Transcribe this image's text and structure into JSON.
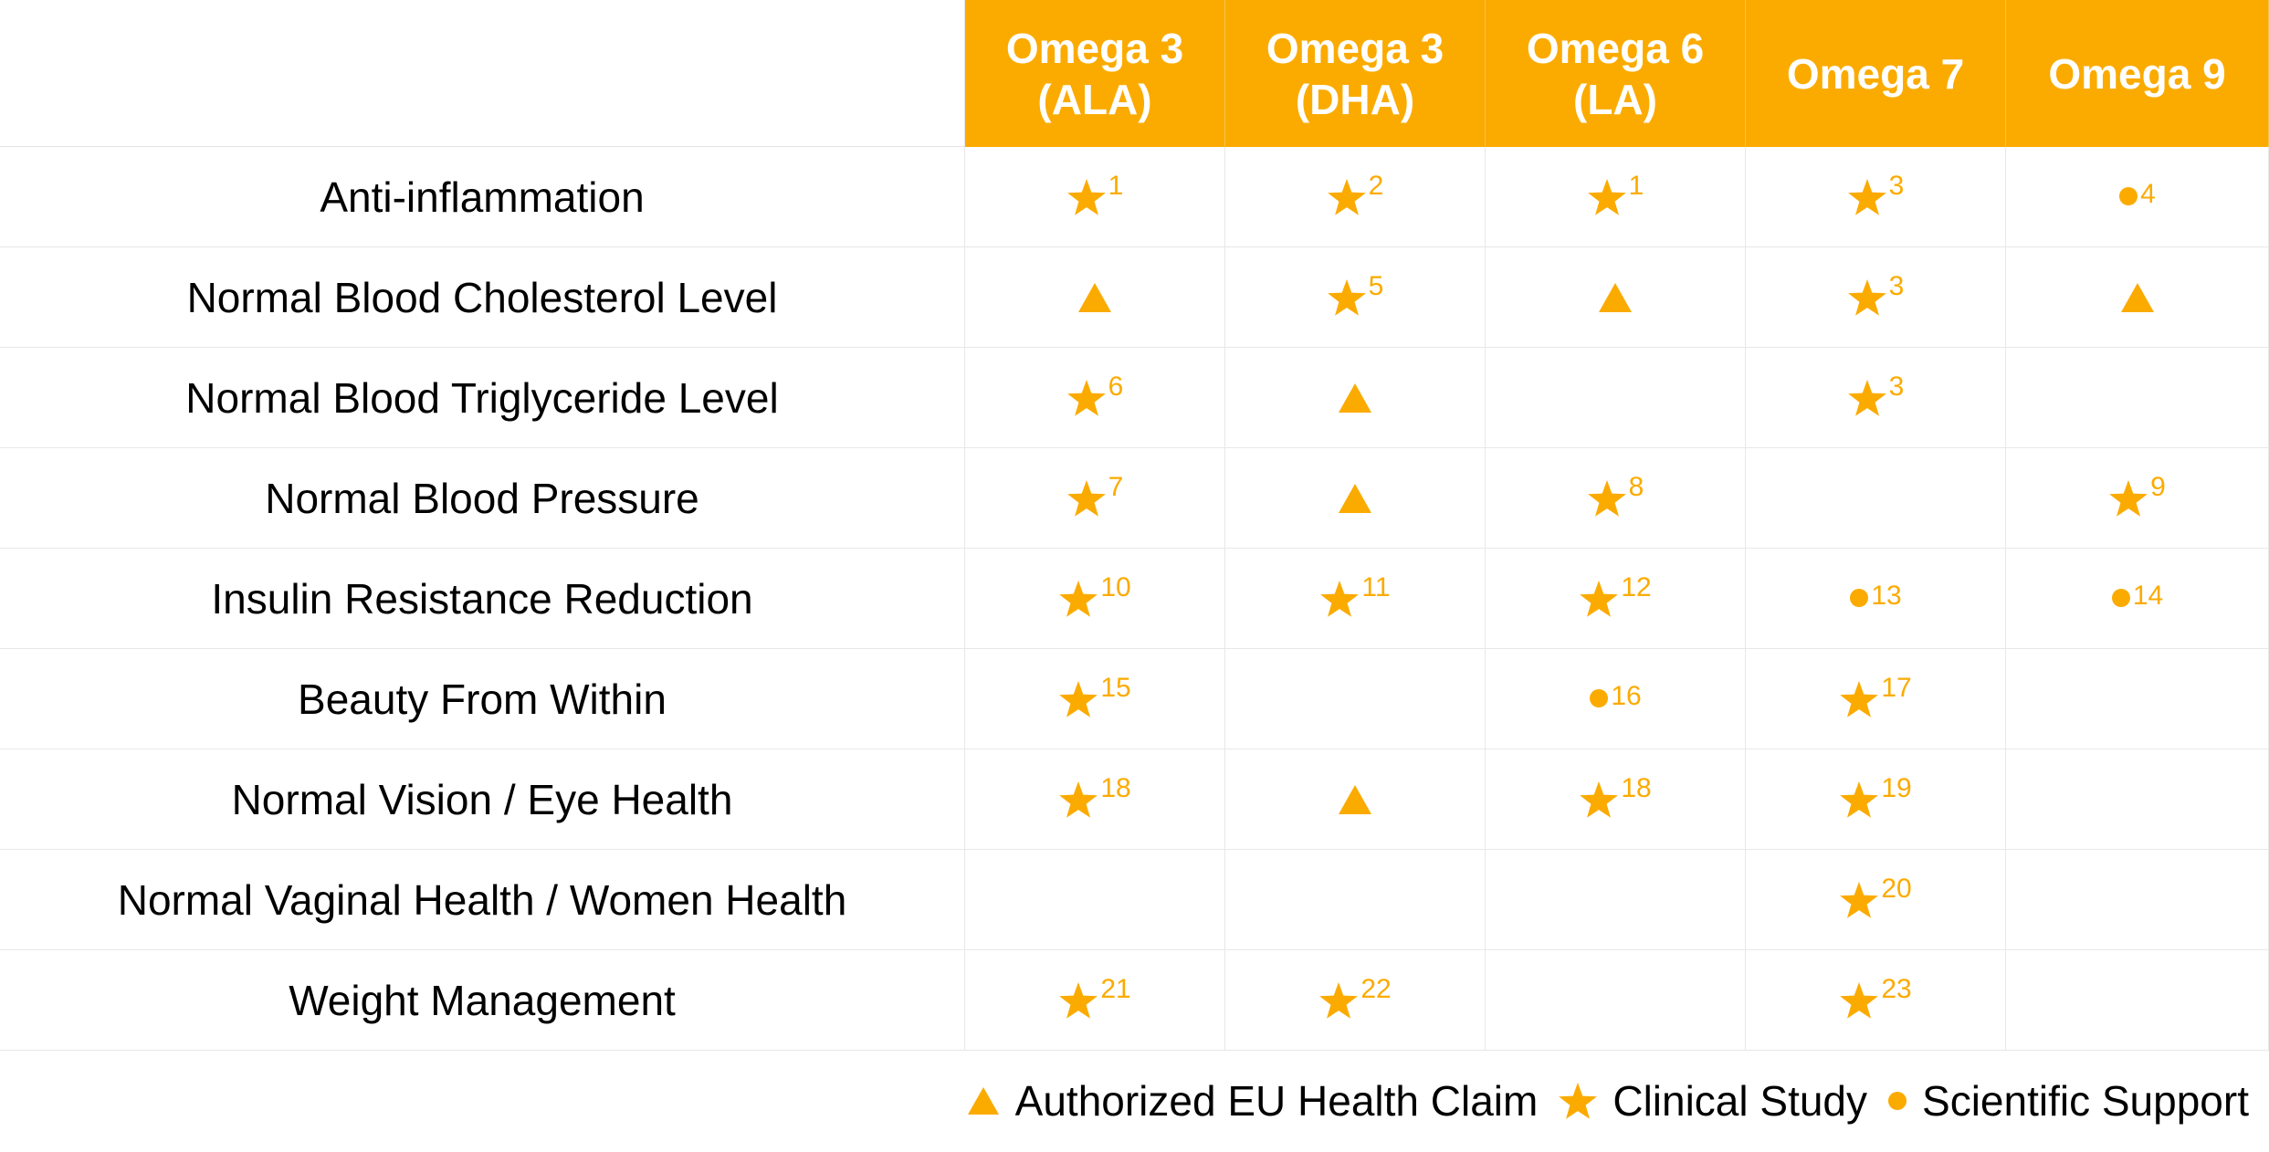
{
  "colors": {
    "accent": "#fbab00",
    "text": "#000000",
    "grid": "#e8e8e8"
  },
  "columns": [
    "Omega 3\n(ALA)",
    "Omega 3\n(DHA)",
    "Omega 6\n(LA)",
    "Omega 7",
    "Omega 9"
  ],
  "rows": [
    {
      "label": "Anti-inflammation",
      "cells": [
        {
          "s": "star",
          "r": "1"
        },
        {
          "s": "star",
          "r": "2"
        },
        {
          "s": "star",
          "r": "1"
        },
        {
          "s": "star",
          "r": "3"
        },
        {
          "s": "dot",
          "r": "4"
        }
      ]
    },
    {
      "label": "Normal Blood Cholesterol Level",
      "cells": [
        {
          "s": "triangle",
          "r": ""
        },
        {
          "s": "star",
          "r": "5"
        },
        {
          "s": "triangle",
          "r": ""
        },
        {
          "s": "star",
          "r": "3"
        },
        {
          "s": "triangle",
          "r": ""
        }
      ]
    },
    {
      "label": "Normal Blood Triglyceride Level",
      "cells": [
        {
          "s": "star",
          "r": "6"
        },
        {
          "s": "triangle",
          "r": ""
        },
        null,
        {
          "s": "star",
          "r": "3"
        },
        null
      ]
    },
    {
      "label": "Normal Blood Pressure",
      "cells": [
        {
          "s": "star",
          "r": "7"
        },
        {
          "s": "triangle",
          "r": ""
        },
        {
          "s": "star",
          "r": "8"
        },
        null,
        {
          "s": "star",
          "r": "9"
        }
      ]
    },
    {
      "label": "Insulin Resistance Reduction",
      "cells": [
        {
          "s": "star",
          "r": "10"
        },
        {
          "s": "star",
          "r": "11"
        },
        {
          "s": "star",
          "r": "12"
        },
        {
          "s": "dot",
          "r": "13"
        },
        {
          "s": "dot",
          "r": "14"
        }
      ]
    },
    {
      "label": "Beauty From Within",
      "cells": [
        {
          "s": "star",
          "r": "15"
        },
        null,
        {
          "s": "dot",
          "r": "16"
        },
        {
          "s": "star",
          "r": "17"
        },
        null
      ]
    },
    {
      "label": "Normal Vision / Eye Health",
      "cells": [
        {
          "s": "star",
          "r": "18"
        },
        {
          "s": "triangle",
          "r": ""
        },
        {
          "s": "star",
          "r": "18"
        },
        {
          "s": "star",
          "r": "19"
        },
        null
      ]
    },
    {
      "label": "Normal Vaginal Health / Women Health",
      "cells": [
        null,
        null,
        null,
        {
          "s": "star",
          "r": "20"
        },
        null
      ]
    },
    {
      "label": "Weight Management",
      "cells": [
        {
          "s": "star",
          "r": "21"
        },
        {
          "s": "star",
          "r": "22"
        },
        null,
        {
          "s": "star",
          "r": "23"
        },
        null
      ]
    }
  ],
  "legend": [
    {
      "icon": "triangle-icon",
      "label": "Authorized EU Health Claim"
    },
    {
      "icon": "star-icon",
      "label": "Clinical Study"
    },
    {
      "icon": "dot-icon",
      "label": "Scientific Support"
    }
  ]
}
